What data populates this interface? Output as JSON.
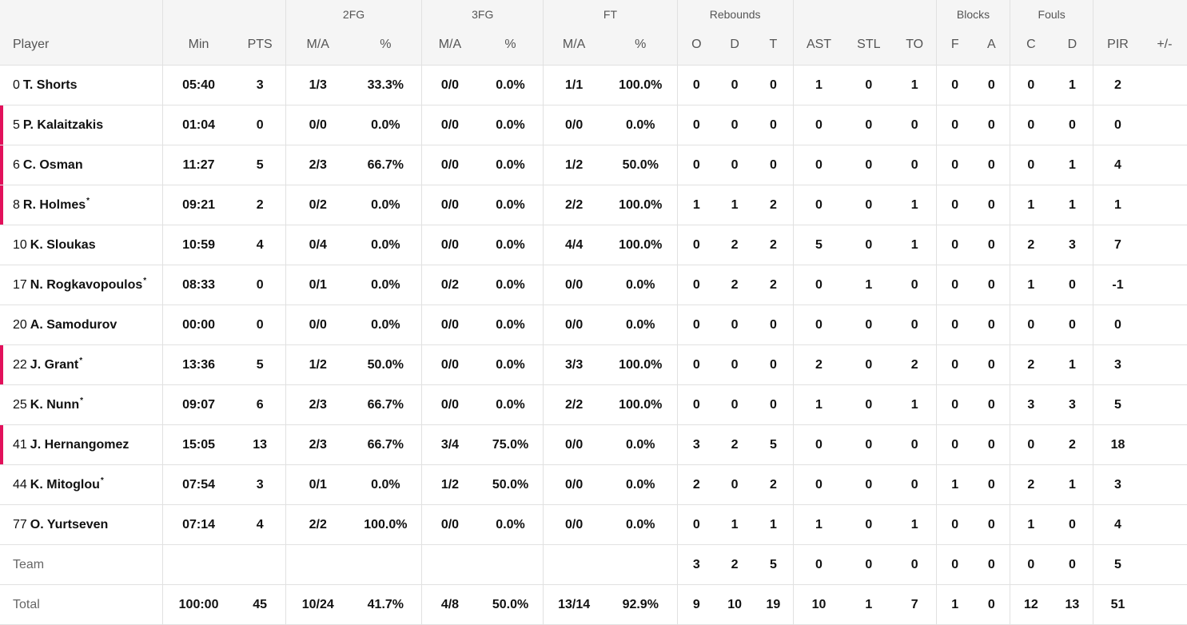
{
  "accent_color": "#e2105b",
  "header": {
    "groups": [
      "",
      "",
      "2FG",
      "3FG",
      "FT",
      "Rebounds",
      "",
      "Blocks",
      "Fouls",
      ""
    ],
    "columns": [
      "Player",
      "Min",
      "PTS",
      "M/A",
      "%",
      "M/A",
      "%",
      "M/A",
      "%",
      "O",
      "D",
      "T",
      "AST",
      "STL",
      "TO",
      "F",
      "A",
      "C",
      "D",
      "PIR",
      "+/-"
    ]
  },
  "rows": [
    {
      "number": "0",
      "name": "T. Shorts",
      "starter": false,
      "star": false,
      "stats": [
        "05:40",
        "3",
        "1/3",
        "33.3%",
        "0/0",
        "0.0%",
        "1/1",
        "100.0%",
        "0",
        "0",
        "0",
        "1",
        "0",
        "1",
        "0",
        "0",
        "0",
        "1",
        "2",
        ""
      ]
    },
    {
      "number": "5",
      "name": "P. Kalaitzakis",
      "starter": true,
      "star": false,
      "stats": [
        "01:04",
        "0",
        "0/0",
        "0.0%",
        "0/0",
        "0.0%",
        "0/0",
        "0.0%",
        "0",
        "0",
        "0",
        "0",
        "0",
        "0",
        "0",
        "0",
        "0",
        "0",
        "0",
        ""
      ]
    },
    {
      "number": "6",
      "name": "C. Osman",
      "starter": true,
      "star": false,
      "stats": [
        "11:27",
        "5",
        "2/3",
        "66.7%",
        "0/0",
        "0.0%",
        "1/2",
        "50.0%",
        "0",
        "0",
        "0",
        "0",
        "0",
        "0",
        "0",
        "0",
        "0",
        "1",
        "4",
        ""
      ]
    },
    {
      "number": "8",
      "name": "R. Holmes",
      "starter": true,
      "star": true,
      "stats": [
        "09:21",
        "2",
        "0/2",
        "0.0%",
        "0/0",
        "0.0%",
        "2/2",
        "100.0%",
        "1",
        "1",
        "2",
        "0",
        "0",
        "1",
        "0",
        "0",
        "1",
        "1",
        "1",
        ""
      ]
    },
    {
      "number": "10",
      "name": "K. Sloukas",
      "starter": false,
      "star": false,
      "stats": [
        "10:59",
        "4",
        "0/4",
        "0.0%",
        "0/0",
        "0.0%",
        "4/4",
        "100.0%",
        "0",
        "2",
        "2",
        "5",
        "0",
        "1",
        "0",
        "0",
        "2",
        "3",
        "7",
        ""
      ]
    },
    {
      "number": "17",
      "name": "N. Rogkavopoulos",
      "starter": false,
      "star": true,
      "stats": [
        "08:33",
        "0",
        "0/1",
        "0.0%",
        "0/2",
        "0.0%",
        "0/0",
        "0.0%",
        "0",
        "2",
        "2",
        "0",
        "1",
        "0",
        "0",
        "0",
        "1",
        "0",
        "-1",
        ""
      ]
    },
    {
      "number": "20",
      "name": "A. Samodurov",
      "starter": false,
      "star": false,
      "stats": [
        "00:00",
        "0",
        "0/0",
        "0.0%",
        "0/0",
        "0.0%",
        "0/0",
        "0.0%",
        "0",
        "0",
        "0",
        "0",
        "0",
        "0",
        "0",
        "0",
        "0",
        "0",
        "0",
        ""
      ]
    },
    {
      "number": "22",
      "name": "J. Grant",
      "starter": true,
      "star": true,
      "stats": [
        "13:36",
        "5",
        "1/2",
        "50.0%",
        "0/0",
        "0.0%",
        "3/3",
        "100.0%",
        "0",
        "0",
        "0",
        "2",
        "0",
        "2",
        "0",
        "0",
        "2",
        "1",
        "3",
        ""
      ]
    },
    {
      "number": "25",
      "name": "K. Nunn",
      "starter": false,
      "star": true,
      "stats": [
        "09:07",
        "6",
        "2/3",
        "66.7%",
        "0/0",
        "0.0%",
        "2/2",
        "100.0%",
        "0",
        "0",
        "0",
        "1",
        "0",
        "1",
        "0",
        "0",
        "3",
        "3",
        "5",
        ""
      ]
    },
    {
      "number": "41",
      "name": "J. Hernangomez",
      "starter": true,
      "star": false,
      "stats": [
        "15:05",
        "13",
        "2/3",
        "66.7%",
        "3/4",
        "75.0%",
        "0/0",
        "0.0%",
        "3",
        "2",
        "5",
        "0",
        "0",
        "0",
        "0",
        "0",
        "0",
        "2",
        "18",
        ""
      ]
    },
    {
      "number": "44",
      "name": "K. Mitoglou",
      "starter": false,
      "star": true,
      "stats": [
        "07:54",
        "3",
        "0/1",
        "0.0%",
        "1/2",
        "50.0%",
        "0/0",
        "0.0%",
        "2",
        "0",
        "2",
        "0",
        "0",
        "0",
        "1",
        "0",
        "2",
        "1",
        "3",
        ""
      ]
    },
    {
      "number": "77",
      "name": "O. Yurtseven",
      "starter": false,
      "star": false,
      "stats": [
        "07:14",
        "4",
        "2/2",
        "100.0%",
        "0/0",
        "0.0%",
        "0/0",
        "0.0%",
        "0",
        "1",
        "1",
        "1",
        "0",
        "1",
        "0",
        "0",
        "1",
        "0",
        "4",
        ""
      ]
    },
    {
      "number": "",
      "name": "Team",
      "starter": false,
      "star": false,
      "muted": true,
      "stats": [
        "",
        "",
        "",
        "",
        "",
        "",
        "",
        "",
        "3",
        "2",
        "5",
        "0",
        "0",
        "0",
        "0",
        "0",
        "0",
        "0",
        "5",
        ""
      ]
    },
    {
      "number": "",
      "name": "Total",
      "starter": false,
      "star": false,
      "muted": true,
      "stats": [
        "100:00",
        "45",
        "10/24",
        "41.7%",
        "4/8",
        "50.0%",
        "13/14",
        "92.9%",
        "9",
        "10",
        "19",
        "10",
        "1",
        "7",
        "1",
        "0",
        "12",
        "13",
        "51",
        ""
      ]
    }
  ]
}
